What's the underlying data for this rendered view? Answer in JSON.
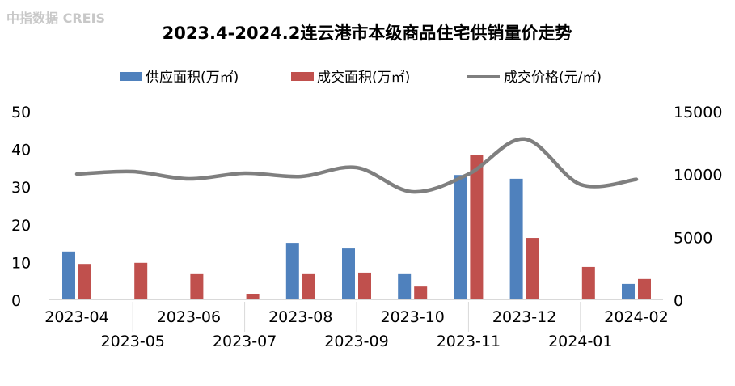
{
  "chart_data": {
    "type": "bar",
    "title": "2023.4-2024.2连云港市本级商品住宅供销量价走势",
    "categories": [
      "2023-04",
      "2023-05",
      "2023-06",
      "2023-07",
      "2023-08",
      "2023-09",
      "2023-10",
      "2023-11",
      "2023-12",
      "2024-01",
      "2024-02"
    ],
    "series": [
      {
        "name": "供应面积(万㎡)",
        "type": "bar",
        "axis": "left",
        "color": "#4f81bd",
        "values": [
          12.7,
          null,
          null,
          null,
          15.0,
          13.5,
          6.9,
          33.0,
          32.0,
          null,
          4.1
        ]
      },
      {
        "name": "成交面积(万㎡)",
        "type": "bar",
        "axis": "left",
        "color": "#c0504d",
        "values": [
          9.4,
          9.7,
          6.9,
          1.5,
          6.9,
          7.1,
          3.4,
          38.4,
          16.3,
          8.6,
          5.4
        ]
      },
      {
        "name": "成交价格(元/㎡)",
        "type": "line",
        "axis": "right",
        "color": "#7f7f7f",
        "values": [
          9980,
          10170,
          9590,
          10040,
          9780,
          10490,
          8560,
          9970,
          12760,
          9150,
          9550
        ]
      }
    ],
    "left_axis": {
      "ylim": [
        0,
        50
      ],
      "ticks": [
        "0",
        "10",
        "20",
        "30",
        "40",
        "50"
      ]
    },
    "right_axis": {
      "ylim": [
        0,
        15000
      ],
      "ticks": [
        "0",
        "5000",
        "10000",
        "15000"
      ]
    },
    "legend": "top",
    "grid": false,
    "watermark": "中指数据 CREIS"
  }
}
